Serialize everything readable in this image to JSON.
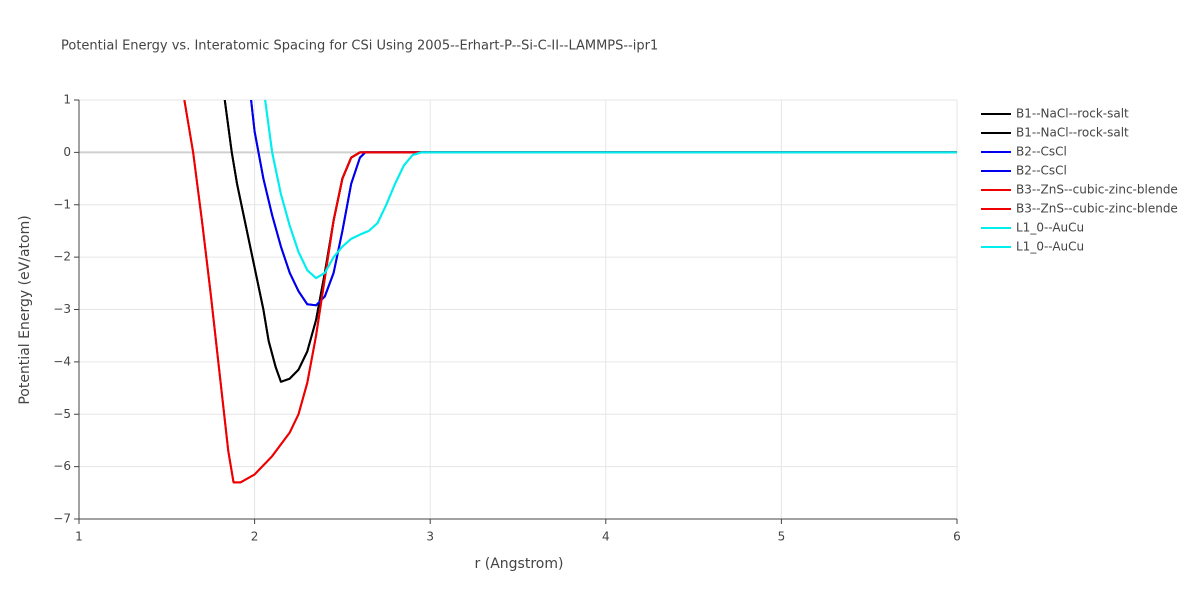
{
  "chart_data": {
    "type": "line",
    "title": "Potential Energy vs. Interatomic Spacing for CSi Using 2005--Erhart-P--Si-C-II--LAMMPS--ipr1",
    "x_label": "r (Angstrom)",
    "y_label": "Potential Energy (eV/atom)",
    "xlim": [
      1,
      6
    ],
    "xticks": [
      1,
      2,
      3,
      4,
      5,
      6
    ],
    "ylim": [
      -7,
      1
    ],
    "yticks": [
      {
        "value": -7,
        "label": "−7"
      },
      {
        "value": -6,
        "label": "−6"
      },
      {
        "value": -5,
        "label": "−5"
      },
      {
        "value": -4,
        "label": "−4"
      },
      {
        "value": -3,
        "label": "−3"
      },
      {
        "value": -2,
        "label": "−2"
      },
      {
        "value": -1,
        "label": "−1"
      },
      0,
      1
    ],
    "grid": true,
    "legend": "right",
    "series": [
      {
        "name": "B1--NaCl--rock-salt",
        "color": "#000000",
        "x": [
          1.83,
          1.87,
          1.9,
          1.95,
          2.0,
          2.05,
          2.08,
          2.12,
          2.15,
          2.2,
          2.25,
          2.3,
          2.35,
          2.4,
          2.45,
          2.5,
          2.55,
          2.6,
          3,
          6
        ],
        "values": [
          1,
          0,
          -0.6,
          -1.4,
          -2.2,
          -3.0,
          -3.6,
          -4.1,
          -4.38,
          -4.32,
          -4.15,
          -3.8,
          -3.2,
          -2.3,
          -1.3,
          -0.5,
          -0.1,
          0,
          0,
          0
        ]
      },
      {
        "name": "B1--NaCl--rock-salt",
        "color": "#000000",
        "x": [
          1.83,
          1.87,
          1.9,
          1.95,
          2.0,
          2.05,
          2.08,
          2.12,
          2.15,
          2.2,
          2.25,
          2.3,
          2.35,
          2.4,
          2.45,
          2.5,
          2.55,
          2.6,
          3,
          6
        ],
        "values": [
          1,
          0,
          -0.6,
          -1.4,
          -2.2,
          -3.0,
          -3.6,
          -4.1,
          -4.38,
          -4.32,
          -4.15,
          -3.8,
          -3.2,
          -2.3,
          -1.3,
          -0.5,
          -0.1,
          0,
          0,
          0
        ]
      },
      {
        "name": "B2--CsCl",
        "color": "#0000ee",
        "x": [
          1.98,
          2.0,
          2.05,
          2.1,
          2.15,
          2.2,
          2.25,
          2.3,
          2.35,
          2.4,
          2.45,
          2.5,
          2.55,
          2.6,
          2.63,
          3,
          6
        ],
        "values": [
          1,
          0.4,
          -0.5,
          -1.2,
          -1.8,
          -2.3,
          -2.65,
          -2.9,
          -2.92,
          -2.75,
          -2.3,
          -1.5,
          -0.6,
          -0.1,
          0,
          0,
          0
        ]
      },
      {
        "name": "B2--CsCl",
        "color": "#0000ee",
        "x": [
          1.98,
          2.0,
          2.05,
          2.1,
          2.15,
          2.2,
          2.25,
          2.3,
          2.35,
          2.4,
          2.45,
          2.5,
          2.55,
          2.6,
          2.63,
          3,
          6
        ],
        "values": [
          1,
          0.4,
          -0.5,
          -1.2,
          -1.8,
          -2.3,
          -2.65,
          -2.9,
          -2.92,
          -2.75,
          -2.3,
          -1.5,
          -0.6,
          -0.1,
          0,
          0,
          0
        ]
      },
      {
        "name": "B3--ZnS--cubic-zinc-blende",
        "color": "#ee0000",
        "x": [
          1.6,
          1.65,
          1.7,
          1.75,
          1.8,
          1.85,
          1.88,
          1.92,
          2.0,
          2.1,
          2.2,
          2.25,
          2.3,
          2.35,
          2.4,
          2.45,
          2.5,
          2.55,
          2.6,
          3,
          6
        ],
        "values": [
          1,
          0,
          -1.3,
          -2.7,
          -4.2,
          -5.7,
          -6.3,
          -6.3,
          -6.15,
          -5.8,
          -5.35,
          -5.0,
          -4.4,
          -3.5,
          -2.4,
          -1.3,
          -0.5,
          -0.1,
          0,
          0,
          0
        ]
      },
      {
        "name": "B3--ZnS--cubic-zinc-blende",
        "color": "#ee0000",
        "x": [
          1.6,
          1.65,
          1.7,
          1.75,
          1.8,
          1.85,
          1.88,
          1.92,
          2.0,
          2.1,
          2.2,
          2.25,
          2.3,
          2.35,
          2.4,
          2.45,
          2.5,
          2.55,
          2.6,
          3,
          6
        ],
        "values": [
          1,
          0,
          -1.3,
          -2.7,
          -4.2,
          -5.7,
          -6.3,
          -6.3,
          -6.15,
          -5.8,
          -5.35,
          -5.0,
          -4.4,
          -3.5,
          -2.4,
          -1.3,
          -0.5,
          -0.1,
          0,
          0,
          0
        ]
      },
      {
        "name": "L1_0--AuCu",
        "color": "#00eeee",
        "x": [
          2.06,
          2.1,
          2.15,
          2.2,
          2.25,
          2.3,
          2.35,
          2.4,
          2.45,
          2.5,
          2.55,
          2.6,
          2.65,
          2.7,
          2.75,
          2.8,
          2.85,
          2.9,
          2.95,
          6
        ],
        "values": [
          1,
          0,
          -0.8,
          -1.4,
          -1.9,
          -2.25,
          -2.4,
          -2.3,
          -2.0,
          -1.8,
          -1.65,
          -1.57,
          -1.5,
          -1.35,
          -1.0,
          -0.6,
          -0.25,
          -0.05,
          0,
          0
        ]
      },
      {
        "name": "L1_0--AuCu",
        "color": "#00eeee",
        "x": [
          2.06,
          2.1,
          2.15,
          2.2,
          2.25,
          2.3,
          2.35,
          2.4,
          2.45,
          2.5,
          2.55,
          2.6,
          2.65,
          2.7,
          2.75,
          2.8,
          2.85,
          2.9,
          2.95,
          6
        ],
        "values": [
          1,
          0,
          -0.8,
          -1.4,
          -1.9,
          -2.25,
          -2.4,
          -2.3,
          -2.0,
          -1.8,
          -1.65,
          -1.57,
          -1.5,
          -1.35,
          -1.0,
          -0.6,
          -0.25,
          -0.05,
          0,
          0
        ]
      }
    ]
  }
}
